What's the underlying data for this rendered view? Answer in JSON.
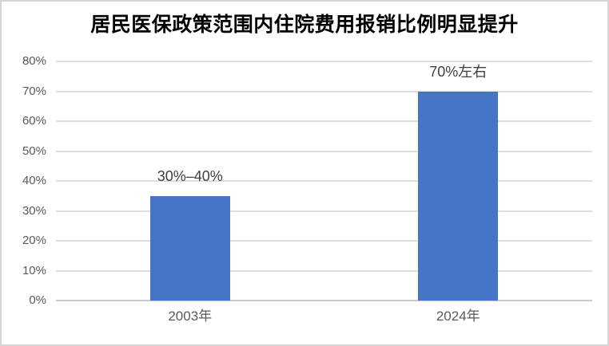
{
  "chart_data": {
    "type": "bar",
    "title": "居民医保政策范围内住院费用报销比例明显提升",
    "categories": [
      "2003年",
      "2024年"
    ],
    "values": [
      35,
      70
    ],
    "bar_labels": [
      "30%–40%",
      "70%左右"
    ],
    "ylabel": "",
    "xlabel": "",
    "ylim": [
      0,
      80
    ],
    "ytick_step": 10,
    "ytick_labels": [
      "0%",
      "10%",
      "20%",
      "30%",
      "40%",
      "50%",
      "60%",
      "70%",
      "80%"
    ],
    "grid": "horizontal",
    "legend_position": "none"
  },
  "colors": {
    "bar": "#4675C8",
    "grid": "#dedede",
    "axis_line": "#c9c9c9",
    "axis_text": "#595959",
    "value_label_text": "#3f3f3f",
    "title_text": "#000000",
    "frame": "#d5d5d5"
  }
}
